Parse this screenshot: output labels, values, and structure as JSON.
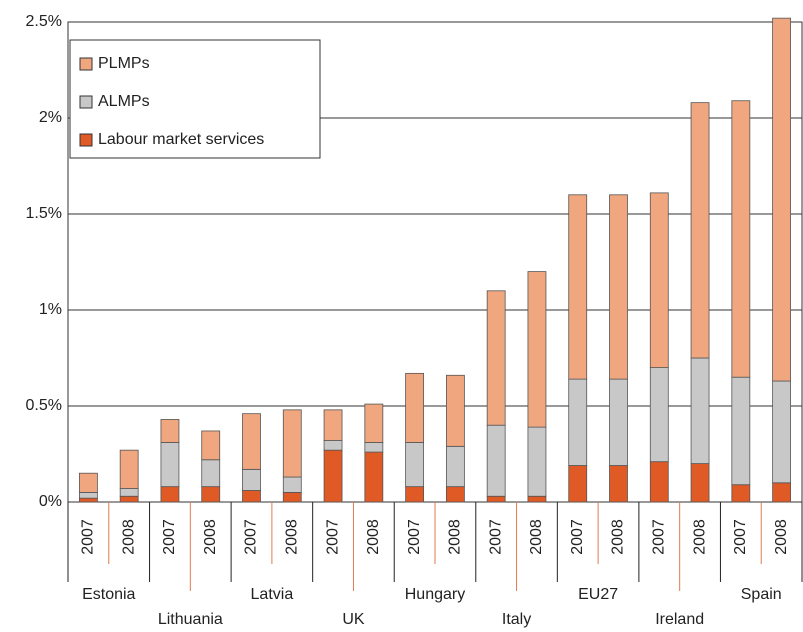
{
  "chart_data": {
    "type": "stacked_bar",
    "categories": [
      "2007",
      "2008",
      "2007",
      "2008",
      "2007",
      "2008",
      "2007",
      "2008",
      "2007",
      "2008",
      "2007",
      "2008",
      "2007",
      "2008",
      "2007",
      "2008",
      "2007",
      "2008"
    ],
    "groups": [
      "Estonia",
      "Lithuania",
      "Latvia",
      "UK",
      "Hungary",
      "Italy",
      "EU27",
      "Ireland",
      "Spain"
    ],
    "series": [
      {
        "name": "PLMPs",
        "color": "#f0a67e",
        "values": [
          0.1,
          0.2,
          0.12,
          0.15,
          0.29,
          0.35,
          0.16,
          0.2,
          0.36,
          0.37,
          0.7,
          0.81,
          0.96,
          0.96,
          0.91,
          1.33,
          1.44,
          1.89
        ]
      },
      {
        "name": "ALMPs",
        "color": "#c8c8c8",
        "values": [
          0.03,
          0.04,
          0.23,
          0.14,
          0.11,
          0.08,
          0.05,
          0.05,
          0.23,
          0.21,
          0.37,
          0.36,
          0.45,
          0.45,
          0.49,
          0.55,
          0.56,
          0.53
        ]
      },
      {
        "name": "Labour market services",
        "color": "#e05a26",
        "values": [
          0.02,
          0.03,
          0.08,
          0.08,
          0.06,
          0.05,
          0.27,
          0.26,
          0.08,
          0.08,
          0.03,
          0.03,
          0.19,
          0.19,
          0.21,
          0.2,
          0.09,
          0.1
        ]
      }
    ],
    "ylim": [
      0,
      2.5
    ],
    "yticks": [
      {
        "value": 0,
        "label": "0%"
      },
      {
        "value": 0.5,
        "label": "0.5%"
      },
      {
        "value": 1,
        "label": "1%"
      },
      {
        "value": 1.5,
        "label": "1.5%"
      },
      {
        "value": 2,
        "label": "2%"
      },
      {
        "value": 2.5,
        "label": "2.5%"
      }
    ],
    "grid": true,
    "legend": "upper left"
  }
}
